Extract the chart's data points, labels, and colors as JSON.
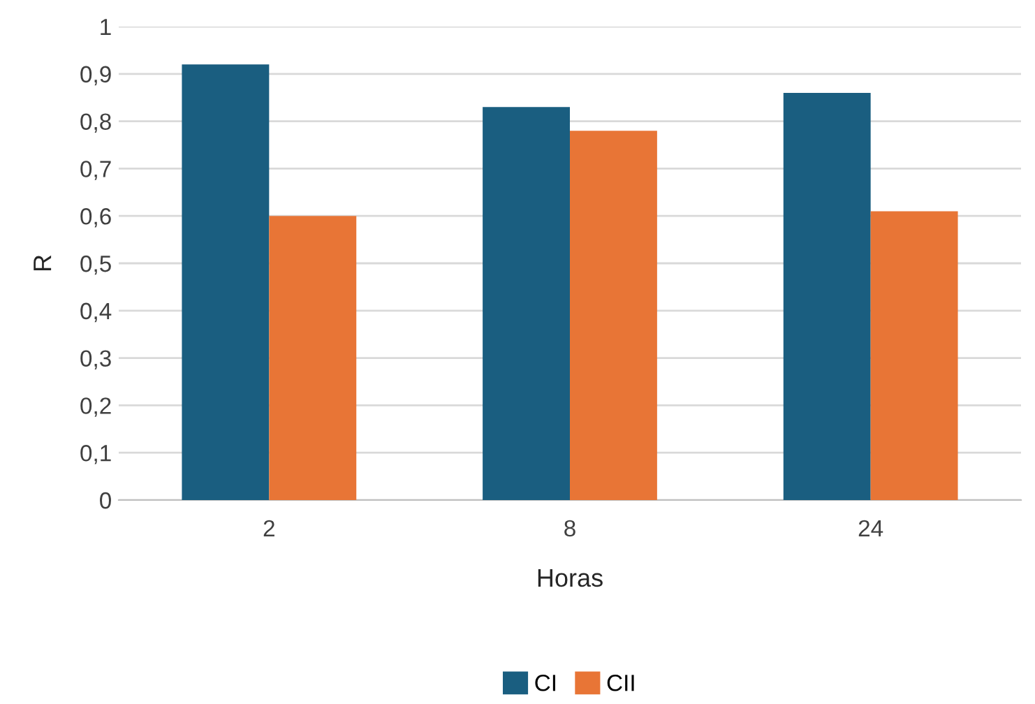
{
  "chart_data": {
    "type": "bar",
    "xlabel": "Horas",
    "ylabel": "R",
    "categories": [
      "2",
      "8",
      "24"
    ],
    "series": [
      {
        "name": "CI",
        "color": "#1a5e80",
        "values": [
          0.92,
          0.83,
          0.86
        ]
      },
      {
        "name": "CII",
        "color": "#e87536",
        "values": [
          0.6,
          0.78,
          0.61
        ]
      }
    ],
    "ylim": [
      0,
      1
    ],
    "yticks": [
      0,
      {
        "value": 0.1,
        "label": "0,1"
      },
      {
        "value": 0.2,
        "label": "0,2"
      },
      {
        "value": 0.3,
        "label": "0,3"
      },
      {
        "value": 0.4,
        "label": "0,4"
      },
      {
        "value": 0.5,
        "label": "0,5"
      },
      {
        "value": 0.6,
        "label": "0,6"
      },
      {
        "value": 0.7,
        "label": "0,7"
      },
      {
        "value": 0.8,
        "label": "0,8"
      },
      {
        "value": 0.9,
        "label": "0,9"
      },
      1
    ],
    "grid": "y",
    "legend": "bottom"
  }
}
